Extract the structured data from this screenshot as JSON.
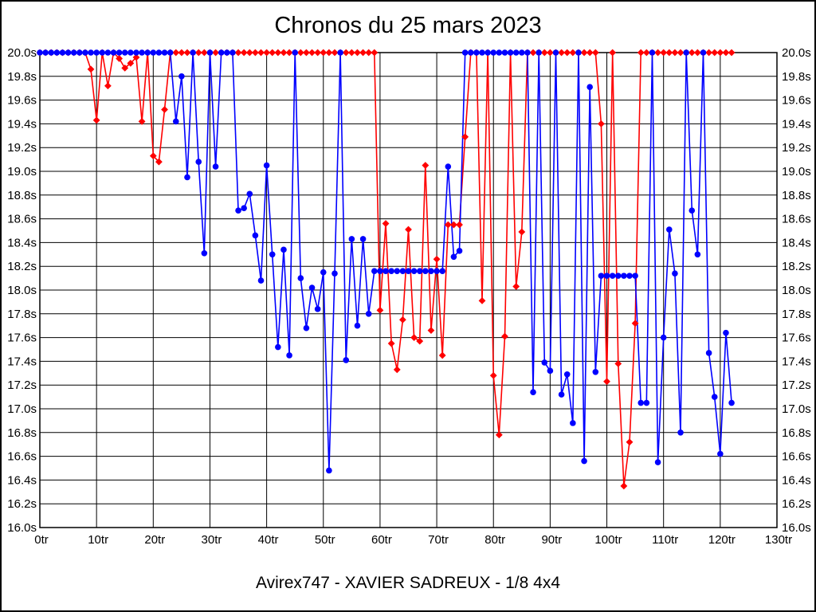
{
  "header": {
    "title": "Chronos du 25 mars 2023"
  },
  "footer": {
    "label": "Avirex747 - XAVIER SADREUX - 1/8 4x4"
  },
  "colors": {
    "red_series": "#ff0000",
    "blue_series": "#0000ff",
    "grid": "#000000",
    "background": "#ffffff"
  },
  "chart_data": {
    "type": "line",
    "title": "Chronos du 25 mars 2023",
    "xlabel": "",
    "ylabel": "",
    "x_unit": "tr",
    "y_unit": "s",
    "xlim": [
      0,
      130
    ],
    "ylim": [
      16.0,
      20.0
    ],
    "grid": true,
    "legend": "none",
    "x_tick_labels": [
      "0tr",
      "10tr",
      "20tr",
      "30tr",
      "40tr",
      "50tr",
      "60tr",
      "70tr",
      "80tr",
      "90tr",
      "100tr",
      "110tr",
      "120tr",
      "130tr"
    ],
    "y_tick_labels_left": [
      "20.0s",
      "19.8s",
      "19.6s",
      "19.4s",
      "19.2s",
      "19.0s",
      "18.8s",
      "18.6s",
      "18.4s",
      "18.2s",
      "18.0s",
      "17.8s",
      "17.6s",
      "17.4s",
      "17.2s",
      "17.0s",
      "16.8s",
      "16.6s",
      "16.4s",
      "16.2s",
      "16.0s"
    ],
    "y_tick_labels_right": [
      "20.0s",
      "19.8s",
      "19.6s",
      "19.4s",
      "19.2s",
      "19.0s",
      "18.8s",
      "18.6s",
      "18.4s",
      "18.2s",
      "18.0s",
      "17.8s",
      "17.6s",
      "17.4s",
      "17.2s",
      "17.0s",
      "16.8s",
      "16.6s",
      "16.4s",
      "16.2s",
      "16.0s"
    ],
    "x_start_lap": 0,
    "series": [
      {
        "name": "serie-rouge",
        "color": "#ff0000",
        "marker": "diamond",
        "values": [
          20,
          20,
          20,
          20,
          20,
          20,
          20,
          20,
          20,
          19.86,
          19.43,
          20,
          19.72,
          20,
          19.95,
          19.87,
          19.91,
          19.96,
          19.42,
          20,
          19.13,
          19.08,
          19.52,
          20,
          20,
          20,
          20,
          20,
          20,
          20,
          20,
          20,
          20,
          20,
          20,
          20,
          20,
          20,
          20,
          20,
          20,
          20,
          20,
          20,
          20,
          20,
          20,
          20,
          20,
          20,
          20,
          20,
          20,
          20,
          20,
          20,
          20,
          20,
          20,
          20,
          17.83,
          18.56,
          17.55,
          17.33,
          17.75,
          18.51,
          17.6,
          17.57,
          19.05,
          17.66,
          18.26,
          17.45,
          18.55,
          18.55,
          18.55,
          19.29,
          20,
          20,
          17.91,
          20,
          17.28,
          16.78,
          17.61,
          20,
          18.03,
          18.49,
          20,
          20,
          20,
          20,
          20,
          20,
          20,
          20,
          20,
          20,
          20,
          20,
          20,
          19.4,
          17.23,
          20,
          17.38,
          16.35,
          16.72,
          17.72,
          20,
          20,
          20,
          20,
          20,
          20,
          20,
          20,
          20,
          20,
          20,
          20,
          20,
          20,
          20,
          20,
          20
        ]
      },
      {
        "name": "serie-bleue",
        "color": "#0000ff",
        "marker": "circle",
        "values": [
          20,
          20,
          20,
          20,
          20,
          20,
          20,
          20,
          20,
          20,
          20,
          20,
          20,
          20,
          20,
          20,
          20,
          20,
          20,
          20,
          20,
          20,
          20,
          20,
          19.42,
          19.8,
          18.95,
          20,
          19.08,
          18.31,
          20,
          19.04,
          20,
          20,
          20,
          18.67,
          18.69,
          18.81,
          18.46,
          18.08,
          19.05,
          18.3,
          17.52,
          18.34,
          17.45,
          20,
          18.1,
          17.68,
          18.02,
          17.84,
          18.15,
          16.48,
          18.14,
          20,
          17.41,
          18.43,
          17.7,
          18.43,
          17.8,
          18.16,
          18.16,
          18.16,
          18.16,
          18.16,
          18.16,
          18.16,
          18.16,
          18.16,
          18.16,
          18.16,
          18.16,
          18.16,
          19.04,
          18.28,
          18.33,
          20,
          20,
          20,
          20,
          20,
          20,
          20,
          20,
          20,
          20,
          20,
          20,
          17.14,
          20,
          17.39,
          17.32,
          20,
          17.12,
          17.29,
          16.88,
          20,
          16.56,
          19.71,
          17.31,
          18.12,
          18.12,
          18.12,
          18.12,
          18.12,
          18.12,
          18.12,
          17.05,
          17.05,
          20,
          16.55,
          17.6,
          18.51,
          18.14,
          16.8,
          20,
          18.67,
          18.3,
          20,
          17.47,
          17.1,
          16.62,
          17.64,
          17.05
        ]
      }
    ]
  }
}
